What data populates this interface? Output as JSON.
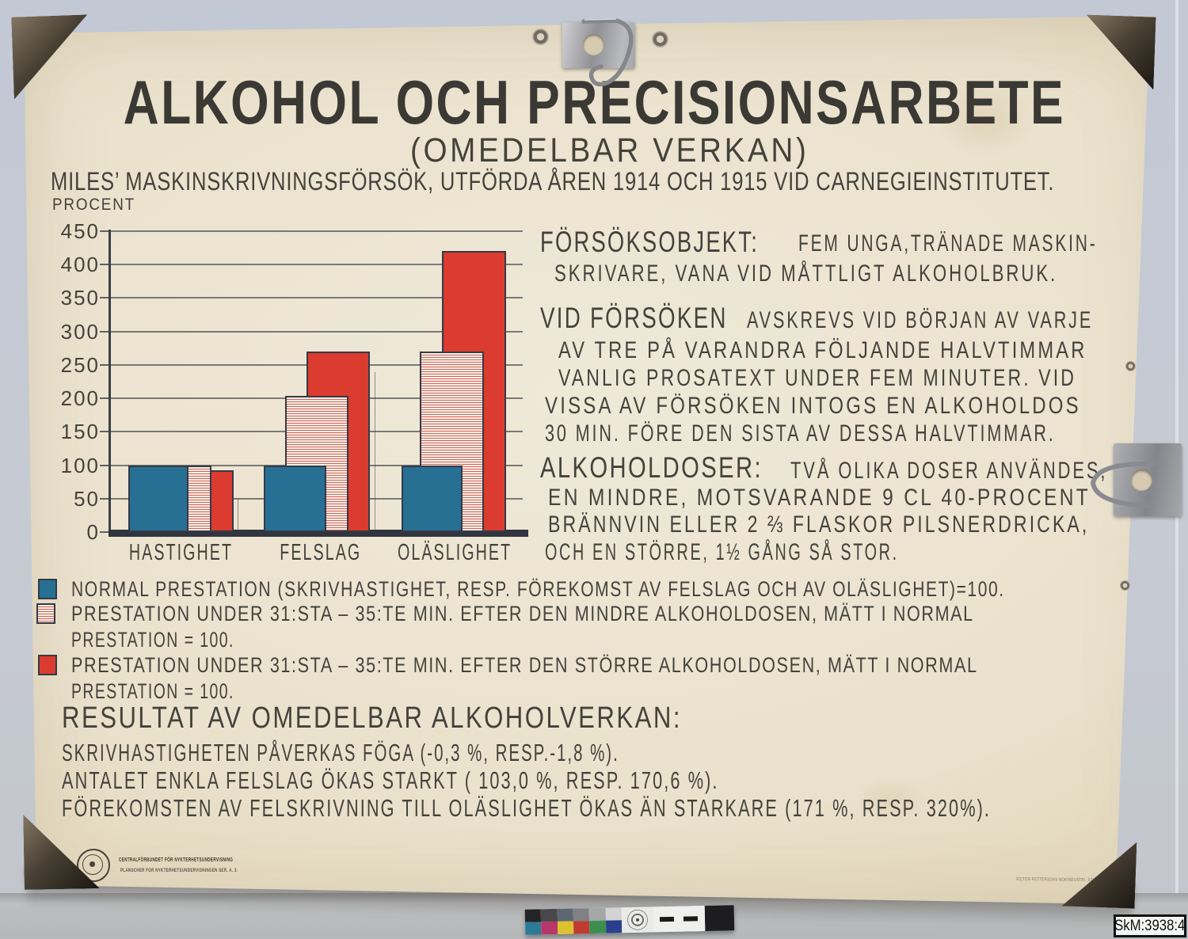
{
  "poster": {
    "title": "ALKOHOL OCH PRECISIONSARBETE",
    "subtitle": "(OMEDELBAR VERKAN)",
    "experiment_line": "MILES’ MASKINSKRIVNINGSFÖRSÖK,  UTFÖRDA ÅREN 1914 OCH 1915 VID CARNEGIEINSTITUTET."
  },
  "chart_data": {
    "type": "bar",
    "title": "ALKOHOL OCH PRECISIONSARBETE (OMEDELBAR VERKAN)",
    "ylabel": "PROCENT",
    "ylim": [
      0,
      450
    ],
    "ytick_step": 50,
    "grid": true,
    "legend_position": "below",
    "categories": [
      "HASTIGHET",
      "FELSLAG",
      "OLÄSLIGHET"
    ],
    "series": [
      {
        "name": "NORMAL PRESTATION = 100",
        "color": "blue",
        "values": [
          100,
          100,
          100
        ],
        "drawn_values": [
          100,
          100,
          100
        ]
      },
      {
        "name": "PRESTATION EFTER DEN MINDRE ALKOHOLDOSEN",
        "color": "pink-striped",
        "values": [
          99.7,
          203,
          271
        ],
        "drawn_values": [
          99,
          203,
          270
        ]
      },
      {
        "name": "PRESTATION EFTER DEN STÖRRE ALKOHOLDOSEN",
        "color": "red",
        "values": [
          98.2,
          270.6,
          420
        ],
        "drawn_values": [
          92,
          270,
          420
        ]
      }
    ]
  },
  "right_column": {
    "blocks": [
      {
        "heading": "FÖRSÖKSOBJEKT:",
        "heading_rest": "FEM UNGA,TRÄNADE MASKIN-",
        "lines": [
          "SKRIVARE, VANA VID MÅTTLIGT ALKOHOLBRUK."
        ]
      },
      {
        "heading": "VID FÖRSÖKEN",
        "heading_rest": "AVSKREVS VID BÖRJAN AV VARJE",
        "lines": [
          "AV TRE PÅ VARANDRA FÖLJANDE HALVTIMMAR",
          "VANLIG PROSATEXT UNDER FEM MINUTER. VID",
          "VISSA AV FÖRSÖKEN INTOGS EN ALKOHOLDOS",
          "30 MIN. FÖRE DEN SISTA AV DESSA HALVTIMMAR."
        ]
      },
      {
        "heading": "ALKOHOLDOSER:",
        "heading_rest": "TVÅ OLIKA DOSER ANVÄNDES,",
        "lines": [
          "EN MINDRE, MOTSVARANDE 9 CL 40-PROCENT",
          "BRÄNNVIN ELLER 2 ⅔ FLASKOR PILSNERDRICKA,",
          "OCH EN STÖRRE, 1½ GÅNG SÅ STOR."
        ]
      }
    ]
  },
  "legend": {
    "items": [
      {
        "swatch": "blue",
        "text": "NORMAL PRESTATION (SKRIVHASTIGHET, RESP. FÖREKOMST AV FELSLAG OCH AV OLÄSLIGHET)=100."
      },
      {
        "swatch": "pink-striped",
        "text": "PRESTATION UNDER 31:STA – 35:TE MIN. EFTER DEN MINDRE ALKOHOLDOSEN, MÄTT I NORMAL",
        "text2": "PRESTATION = 100."
      },
      {
        "swatch": "red",
        "text": "PRESTATION UNDER 31:STA – 35:TE MIN. EFTER DEN STÖRRE ALKOHOLDOSEN, MÄTT I NORMAL",
        "text2": "PRESTATION = 100."
      }
    ]
  },
  "results": {
    "heading": "RESULTAT AV OMEDELBAR ALKOHOLVERKAN:",
    "lines": [
      "SKRIVHASTIGHETEN PÅVERKAS FÖGA (-0,3 %, RESP.-1,8 %).",
      "ANTALET ENKLA FELSLAG ÖKAS STARKT ( 103,0 %, RESP. 170,6 %).",
      "FÖREKOMSTEN AV FELSKRIVNING TILL OLÄSLIGHET ÖKAS ÄN STARKARE (171 %, RESP. 320%)."
    ]
  },
  "footer": {
    "publisher_line1": "CENTRALFÖRBUNDET FÖR NYKTERHETSUNDERVISNING",
    "publisher_line2": "PLANSCHER FÖR NYKTERHETSUNDERVISNINGEN  SER. A. 3.",
    "printer": "VICTOR PETTERSONS BOKINDUSTRI, STOCKHOLM"
  },
  "museum_label": {
    "text": "SkM:3938:4"
  },
  "colors": {
    "bar_blue": "#276f93",
    "bar_red": "#dc3b30",
    "stripe_red": "#d0625c",
    "ink": "#45423c",
    "paper": "#eae1cc",
    "wall": "#c6cad3"
  }
}
